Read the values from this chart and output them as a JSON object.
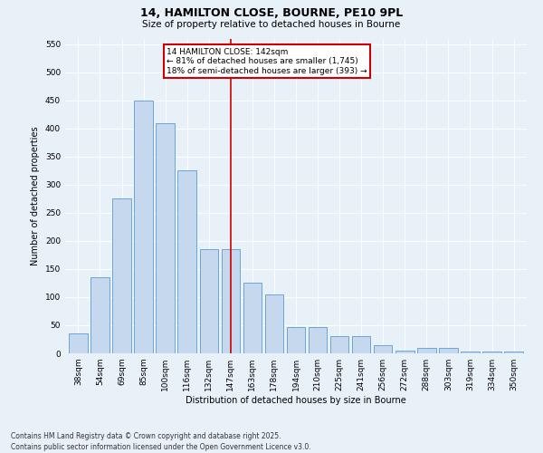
{
  "title": "14, HAMILTON CLOSE, BOURNE, PE10 9PL",
  "subtitle": "Size of property relative to detached houses in Bourne",
  "xlabel": "Distribution of detached houses by size in Bourne",
  "ylabel": "Number of detached properties",
  "categories": [
    "38sqm",
    "54sqm",
    "69sqm",
    "85sqm",
    "100sqm",
    "116sqm",
    "132sqm",
    "147sqm",
    "163sqm",
    "178sqm",
    "194sqm",
    "210sqm",
    "225sqm",
    "241sqm",
    "256sqm",
    "272sqm",
    "288sqm",
    "303sqm",
    "319sqm",
    "334sqm",
    "350sqm"
  ],
  "values": [
    35,
    135,
    275,
    450,
    410,
    325,
    185,
    185,
    125,
    105,
    47,
    47,
    30,
    30,
    15,
    5,
    10,
    10,
    3,
    3,
    3
  ],
  "bar_color": "#c5d8ee",
  "bar_edge_color": "#5b9bd5",
  "reference_line_x": 7,
  "reference_line_label": "14 HAMILTON CLOSE: 142sqm",
  "annotation_line1": "← 81% of detached houses are smaller (1,745)",
  "annotation_line2": "18% of semi-detached houses are larger (393) →",
  "annotation_box_color": "#ffffff",
  "annotation_box_edge": "#cc0000",
  "ref_line_color": "#cc0000",
  "ylim": [
    0,
    560
  ],
  "yticks": [
    0,
    50,
    100,
    150,
    200,
    250,
    300,
    350,
    400,
    450,
    500,
    550
  ],
  "background_color": "#e8f0f8",
  "footer": "Contains HM Land Registry data © Crown copyright and database right 2025.\nContains public sector information licensed under the Open Government Licence v3.0.",
  "title_fontsize": 9,
  "subtitle_fontsize": 7.5,
  "axis_label_fontsize": 7,
  "tick_fontsize": 6.5,
  "annotation_fontsize": 6.5,
  "footer_fontsize": 5.5
}
